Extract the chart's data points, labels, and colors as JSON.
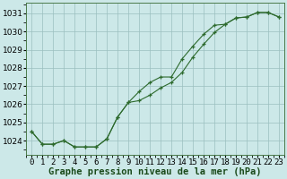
{
  "xlabel": "Graphe pression niveau de la mer (hPa)",
  "hours": [
    0,
    1,
    2,
    3,
    4,
    5,
    6,
    7,
    8,
    9,
    10,
    11,
    12,
    13,
    14,
    15,
    16,
    17,
    18,
    19,
    20,
    21,
    22,
    23
  ],
  "series1": [
    1024.5,
    1023.8,
    1023.8,
    1024.0,
    1023.65,
    1023.65,
    1023.65,
    1024.1,
    1025.3,
    1026.1,
    1026.7,
    1027.2,
    1027.5,
    1027.5,
    1028.5,
    1029.2,
    1029.85,
    1030.35,
    1030.4,
    1030.75,
    1030.8,
    1031.05,
    1031.05,
    1030.8
  ],
  "series2": [
    1024.5,
    1023.8,
    1023.8,
    1024.0,
    1023.65,
    1023.65,
    1023.65,
    1024.1,
    1025.3,
    1026.1,
    1026.2,
    1026.5,
    1026.9,
    1027.2,
    1027.75,
    1028.6,
    1029.3,
    1029.95,
    1030.4,
    1030.75,
    1030.8,
    1031.05,
    1031.05,
    1030.8
  ],
  "line_color": "#2d6a2d",
  "marker_color": "#2d6a2d",
  "bg_color": "#cce8e8",
  "grid_color": "#9bbfbf",
  "ylim_min": 1023.2,
  "ylim_max": 1031.6,
  "yticks": [
    1024,
    1025,
    1026,
    1027,
    1028,
    1029,
    1030,
    1031
  ],
  "tick_fontsize": 6.5,
  "xlabel_fontsize": 7.5
}
